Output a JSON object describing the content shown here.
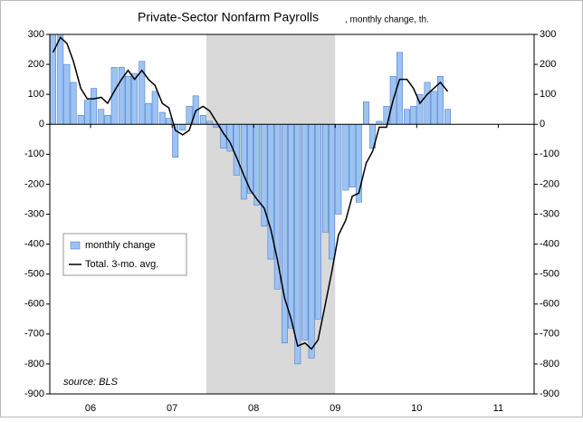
{
  "chart_data": {
    "type": "bar-line",
    "title": "Private-Sector Nonfarm Payrolls",
    "subtitle": ", monthly change, th.",
    "source": "source: BLS",
    "x": [
      2006.04,
      2006.13,
      2006.21,
      2006.29,
      2006.38,
      2006.46,
      2006.54,
      2006.63,
      2006.71,
      2006.79,
      2006.88,
      2006.96,
      2007.04,
      2007.13,
      2007.21,
      2007.29,
      2007.38,
      2007.46,
      2007.54,
      2007.63,
      2007.71,
      2007.79,
      2007.88,
      2007.96,
      2008.04,
      2008.13,
      2008.21,
      2008.29,
      2008.38,
      2008.46,
      2008.54,
      2008.63,
      2008.71,
      2008.79,
      2008.88,
      2008.96,
      2009.04,
      2009.13,
      2009.21,
      2009.29,
      2009.38,
      2009.46,
      2009.54,
      2009.63,
      2009.71,
      2009.79,
      2009.88,
      2009.96,
      2010.04,
      2010.13,
      2010.21,
      2010.29,
      2010.38,
      2010.46,
      2010.54,
      2010.63,
      2010.71,
      2010.79,
      2010.88
    ],
    "series": [
      {
        "name": "monthly change",
        "kind": "bar",
        "color": "#9cc3f2",
        "stroke": "#3b6fc8",
        "values": [
          300,
          300,
          200,
          140,
          30,
          80,
          120,
          50,
          30,
          190,
          190,
          160,
          170,
          210,
          70,
          110,
          40,
          20,
          -110,
          -20,
          60,
          95,
          30,
          10,
          -10,
          -80,
          -90,
          -170,
          -250,
          -230,
          -270,
          -340,
          -450,
          -550,
          -730,
          -680,
          -800,
          -720,
          -780,
          -650,
          -360,
          -450,
          -300,
          -220,
          -210,
          -260,
          75,
          -80,
          10,
          60,
          160,
          240,
          50,
          60,
          100,
          140,
          110,
          160,
          50
        ]
      },
      {
        "name": "Total. 3-mo. avg.",
        "kind": "line",
        "color": "#000000",
        "values": [
          240,
          290,
          270,
          210,
          120,
          85,
          85,
          90,
          70,
          110,
          150,
          180,
          150,
          180,
          150,
          130,
          70,
          55,
          -20,
          -35,
          -20,
          45,
          60,
          45,
          10,
          -30,
          -60,
          -110,
          -170,
          -220,
          -250,
          -280,
          -350,
          -450,
          -580,
          -650,
          -740,
          -730,
          -750,
          -720,
          -600,
          -490,
          -370,
          -320,
          -240,
          -230,
          -130,
          -90,
          -10,
          -10,
          80,
          150,
          150,
          120,
          70,
          100,
          120,
          140,
          110
        ]
      }
    ],
    "shaded_region": [
      2007.92,
      2009.5
    ],
    "xlim": [
      2006,
      2011.94
    ],
    "xticks": [
      {
        "value": 2006.5,
        "label": "06"
      },
      {
        "value": 2007.5,
        "label": "07"
      },
      {
        "value": 2008.5,
        "label": "08"
      },
      {
        "value": 2009.5,
        "label": "09"
      },
      {
        "value": 2010.5,
        "label": "10"
      },
      {
        "value": 2011.5,
        "label": "11"
      }
    ],
    "ylim": [
      -900,
      300
    ],
    "yticks": [
      -900,
      -800,
      -700,
      -600,
      -500,
      -400,
      -300,
      -200,
      -100,
      0,
      100,
      200,
      300
    ],
    "legend": "left"
  }
}
